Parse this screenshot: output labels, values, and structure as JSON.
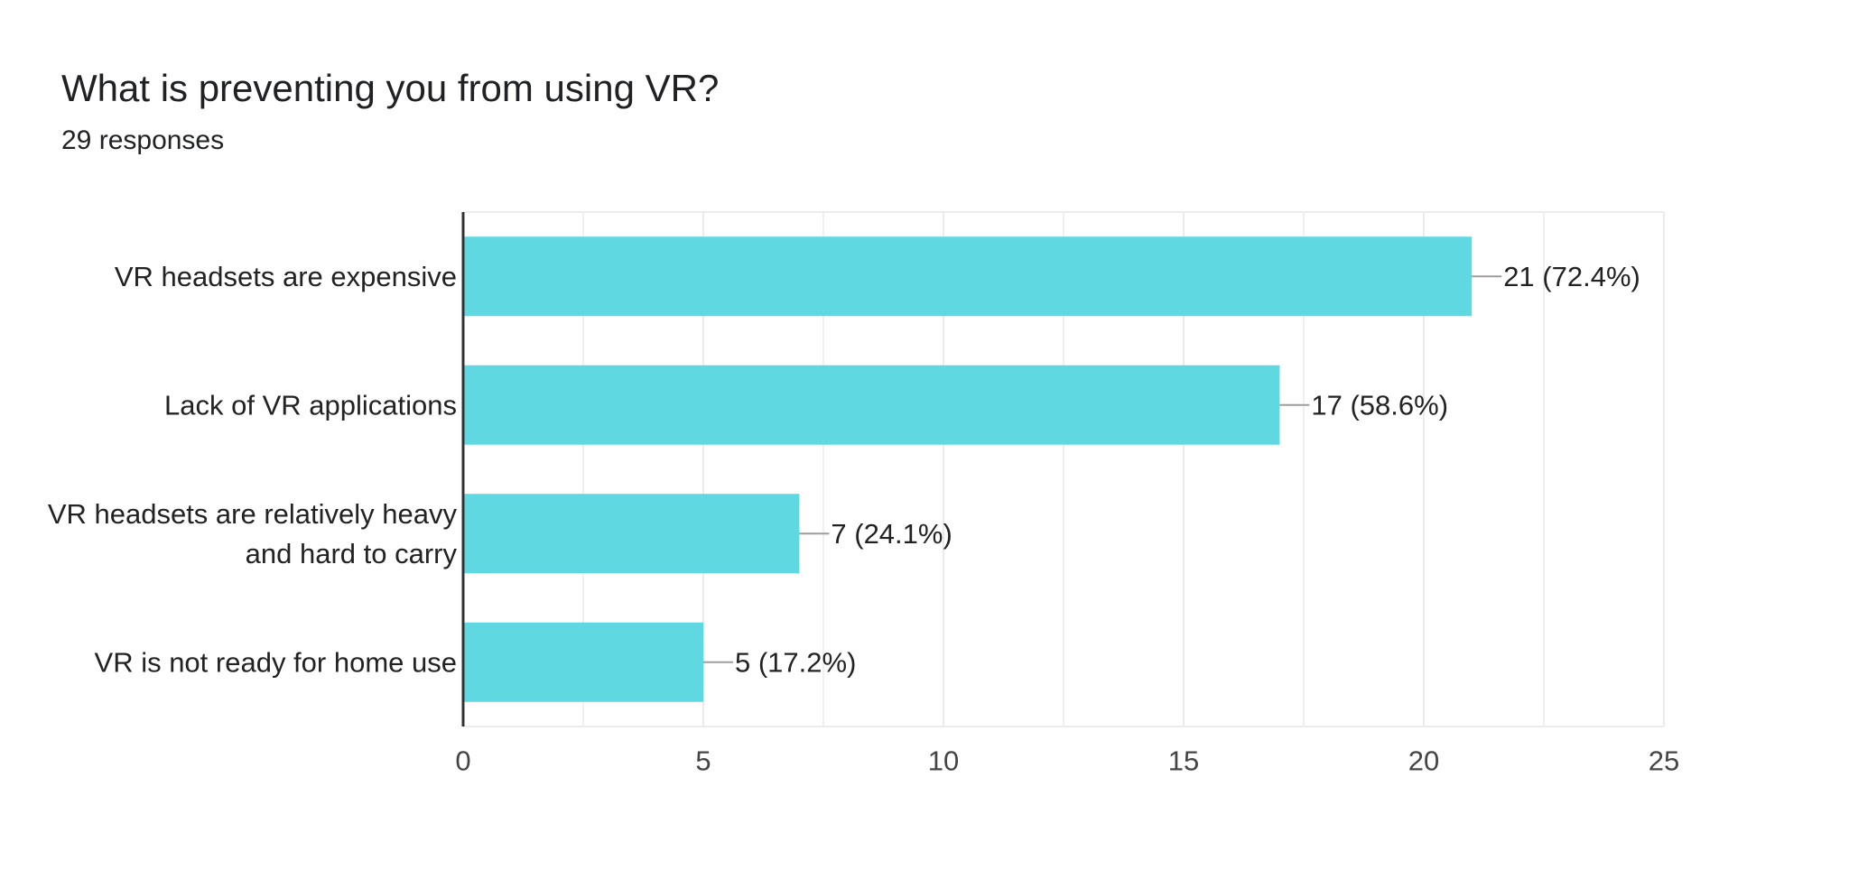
{
  "header": {
    "title": "What is preventing you from using VR?",
    "subtitle": "29 responses"
  },
  "chart_data": {
    "type": "bar",
    "orientation": "horizontal",
    "title": "What is preventing you from using VR?",
    "subtitle": "29 responses",
    "categories": [
      [
        "VR headsets are expensive"
      ],
      [
        "Lack of VR applications"
      ],
      [
        "VR headsets are relatively heavy",
        "and hard to carry"
      ],
      [
        "VR is not ready for home use"
      ]
    ],
    "values": [
      21,
      17,
      7,
      5
    ],
    "data_labels": [
      "21 (72.4%)",
      "17 (58.6%)",
      "7 (24.1%)",
      "5 (17.2%)"
    ],
    "xlim": [
      0,
      25
    ],
    "x_ticks": [
      0,
      5,
      10,
      15,
      20,
      25
    ],
    "x_tick_labels": [
      "0",
      "5",
      "10",
      "15",
      "20",
      "25"
    ],
    "grid": true,
    "bar_color": "#5fd8e1",
    "leader_color": "#9e9e9e",
    "axis_color": "#333333",
    "grid_color": "#ebebeb"
  }
}
